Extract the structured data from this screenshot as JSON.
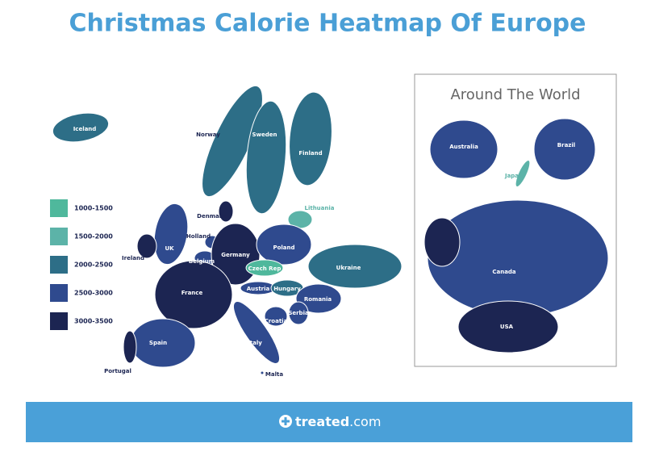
{
  "title": "Christmas Calorie Heatmap Of Europe",
  "legend": [
    {
      "label": "1000-1500",
      "color": "#4fb89c"
    },
    {
      "label": "1500-2000",
      "color": "#5cb3a8"
    },
    {
      "label": "2000-2500",
      "color": "#2d6e87"
    },
    {
      "label": "2500-3000",
      "color": "#2f4a8e"
    },
    {
      "label": "3000-3500",
      "color": "#1c2552"
    }
  ],
  "europe": [
    {
      "name": "Iceland",
      "color": "#2d6e87"
    },
    {
      "name": "Norway",
      "color": "#2d6e87"
    },
    {
      "name": "Sweden",
      "color": "#2d6e87"
    },
    {
      "name": "Finland",
      "color": "#2d6e87"
    },
    {
      "name": "Lithuania",
      "color": "#5cb3a8"
    },
    {
      "name": "Denmark",
      "color": "#1c2552"
    },
    {
      "name": "UK",
      "color": "#2f4a8e"
    },
    {
      "name": "Ireland",
      "color": "#1c2552"
    },
    {
      "name": "Holland",
      "color": "#2f4a8e"
    },
    {
      "name": "Belgium",
      "color": "#2f4a8e"
    },
    {
      "name": "Germany",
      "color": "#1c2552"
    },
    {
      "name": "Poland",
      "color": "#2f4a8e"
    },
    {
      "name": "Czech Rep",
      "color": "#4fb89c"
    },
    {
      "name": "Ukraine",
      "color": "#2d6e87"
    },
    {
      "name": "Austria",
      "color": "#2f4a8e"
    },
    {
      "name": "Hungary",
      "color": "#2d6e87"
    },
    {
      "name": "Romania",
      "color": "#2f4a8e"
    },
    {
      "name": "France",
      "color": "#1c2552"
    },
    {
      "name": "Serbia",
      "color": "#2f4a8e"
    },
    {
      "name": "Croatia",
      "color": "#2f4a8e"
    },
    {
      "name": "Italy",
      "color": "#2f4a8e"
    },
    {
      "name": "Spain",
      "color": "#2f4a8e"
    },
    {
      "name": "Portugal",
      "color": "#1c2552"
    },
    {
      "name": "Malta",
      "color": "#2f4a8e"
    }
  ],
  "world": {
    "title": "Around The World",
    "countries": [
      {
        "name": "Australia",
        "color": "#2f4a8e"
      },
      {
        "name": "Brazil",
        "color": "#2f4a8e"
      },
      {
        "name": "Japan",
        "color": "#5cb3a8"
      },
      {
        "name": "Canada",
        "color": "#2f4a8e"
      },
      {
        "name": "USA",
        "color": "#1c2552"
      }
    ]
  },
  "footer": {
    "brand": "treated",
    "domain": ".com"
  }
}
